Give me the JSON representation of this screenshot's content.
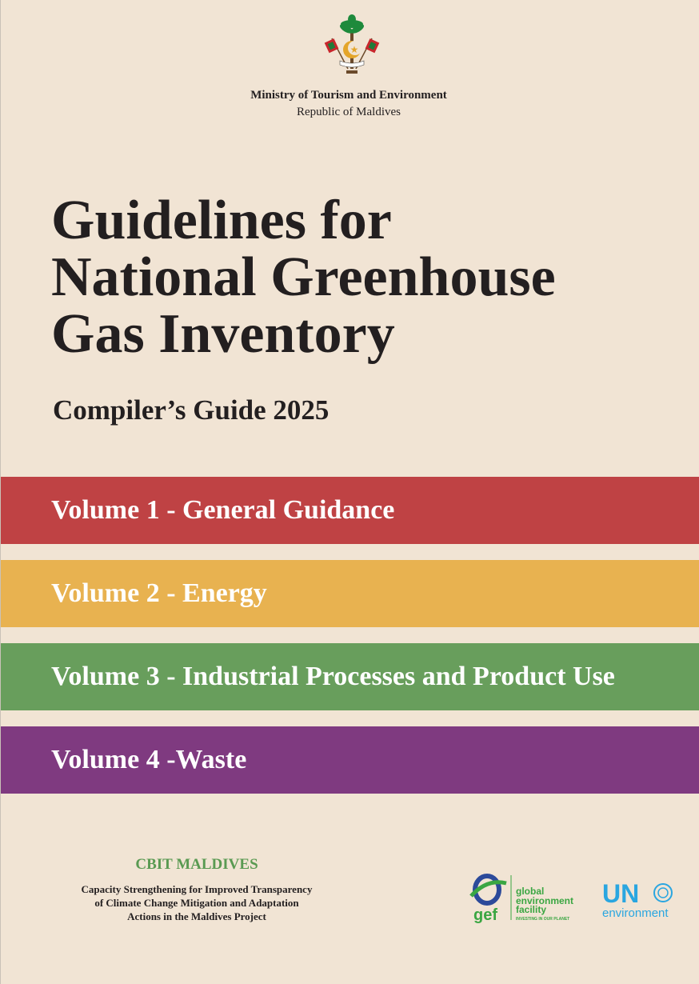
{
  "header": {
    "emblem": "maldives-emblem",
    "ministry": "Ministry of Tourism and Environment",
    "country": "Republic of Maldives"
  },
  "title_lines": [
    "Guidelines for",
    "National Greenhouse",
    "Gas Inventory"
  ],
  "subtitle": "Compiler’s Guide 2025",
  "volumes": [
    {
      "label": "Volume 1 - General Guidance",
      "color": "#bf4244"
    },
    {
      "label": "Volume 2 - Energy",
      "color": "#e8b250"
    },
    {
      "label": "Volume 3 - Industrial Processes and Product Use",
      "color": "#689e5c"
    },
    {
      "label": "Volume 4 -Waste",
      "color": "#7f3a80"
    }
  ],
  "footer": {
    "cbit_title": "CBIT MALDIVES",
    "cbit_lines": [
      "Capacity Strengthening for Improved Transparency",
      "of Climate Change Mitigation and Adaptation",
      "Actions in the Maldives Project"
    ],
    "gef": {
      "short": "gef",
      "lines": [
        "global",
        "environment",
        "facility"
      ],
      "tagline": "INVESTING IN OUR PLANET"
    },
    "unep": {
      "short": "UN",
      "sub": "environment"
    }
  }
}
